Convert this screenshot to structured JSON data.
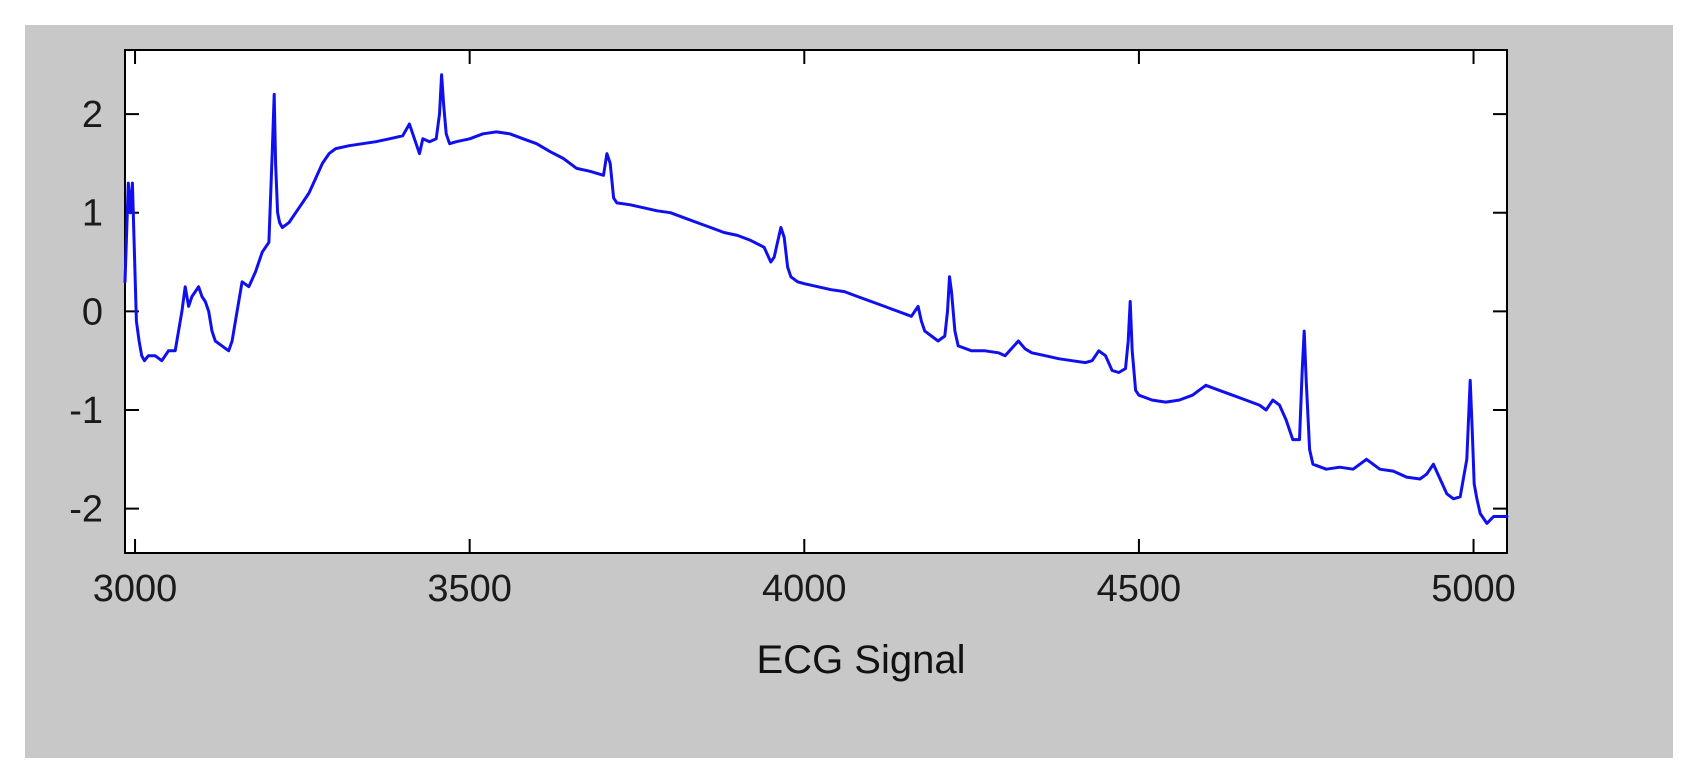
{
  "chart_data": {
    "type": "line",
    "title": "",
    "xlabel": "ECG Signal",
    "ylabel": "",
    "xlim": [
      2985,
      5050
    ],
    "ylim": [
      -2.45,
      2.65
    ],
    "xticks": [
      3000,
      3500,
      4000,
      4500,
      5000
    ],
    "yticks": [
      2,
      1,
      0,
      -1,
      -2
    ],
    "xtick_labels": [
      "3000",
      "3500",
      "4000",
      "4500",
      "5000"
    ],
    "ytick_labels": [
      "2",
      "1",
      "0",
      "-1",
      "-2"
    ],
    "grid": false,
    "legend": "none",
    "colors": {
      "line": "#1010ee",
      "panel_background": "#c8c8c8",
      "plot_background": "#ffffff",
      "axes": "#000000"
    },
    "series": [
      {
        "x": [
          2985,
          2990,
          2993,
          2996,
          2999,
          3002,
          3006,
          3010,
          3014,
          3020,
          3030,
          3040,
          3050,
          3060,
          3070,
          3075,
          3080,
          3085,
          3090,
          3095,
          3100,
          3105,
          3110,
          3115,
          3120,
          3130,
          3140,
          3145,
          3150,
          3160,
          3170,
          3180,
          3190,
          3200,
          3205,
          3208,
          3210,
          3213,
          3216,
          3220,
          3230,
          3240,
          3250,
          3260,
          3270,
          3280,
          3290,
          3300,
          3320,
          3340,
          3360,
          3380,
          3400,
          3410,
          3420,
          3425,
          3430,
          3440,
          3450,
          3455,
          3458,
          3461,
          3465,
          3470,
          3480,
          3500,
          3520,
          3540,
          3560,
          3580,
          3600,
          3620,
          3640,
          3660,
          3680,
          3700,
          3705,
          3710,
          3715,
          3720,
          3740,
          3760,
          3780,
          3800,
          3820,
          3840,
          3860,
          3880,
          3900,
          3920,
          3940,
          3950,
          3955,
          3960,
          3965,
          3970,
          3975,
          3980,
          3990,
          4000,
          4020,
          4040,
          4060,
          4080,
          4100,
          4120,
          4140,
          4160,
          4170,
          4175,
          4180,
          4190,
          4200,
          4210,
          4214,
          4217,
          4220,
          4225,
          4230,
          4250,
          4270,
          4290,
          4300,
          4320,
          4330,
          4340,
          4360,
          4380,
          4400,
          4420,
          4430,
          4440,
          4450,
          4460,
          4470,
          4480,
          4484,
          4487,
          4490,
          4495,
          4500,
          4520,
          4540,
          4560,
          4580,
          4600,
          4620,
          4640,
          4660,
          4680,
          4690,
          4700,
          4710,
          4720,
          4730,
          4740,
          4744,
          4747,
          4750,
          4755,
          4760,
          4780,
          4800,
          4820,
          4840,
          4860,
          4880,
          4900,
          4920,
          4930,
          4940,
          4950,
          4960,
          4970,
          4980,
          4990,
          4995,
          4998,
          5001,
          5005,
          5010,
          5020,
          5030,
          5050
        ],
        "y": [
          0.3,
          1.3,
          1.0,
          1.3,
          0.6,
          -0.1,
          -0.3,
          -0.45,
          -0.5,
          -0.45,
          -0.45,
          -0.5,
          -0.4,
          -0.4,
          0.0,
          0.25,
          0.05,
          0.15,
          0.2,
          0.25,
          0.15,
          0.1,
          0.0,
          -0.2,
          -0.3,
          -0.35,
          -0.4,
          -0.3,
          -0.1,
          0.3,
          0.25,
          0.4,
          0.6,
          0.7,
          1.6,
          2.2,
          1.5,
          1.0,
          0.9,
          0.85,
          0.9,
          1.0,
          1.1,
          1.2,
          1.35,
          1.5,
          1.6,
          1.65,
          1.68,
          1.7,
          1.72,
          1.75,
          1.78,
          1.9,
          1.7,
          1.6,
          1.75,
          1.72,
          1.75,
          2.0,
          2.4,
          2.1,
          1.8,
          1.7,
          1.72,
          1.75,
          1.8,
          1.82,
          1.8,
          1.75,
          1.7,
          1.62,
          1.55,
          1.45,
          1.42,
          1.38,
          1.6,
          1.5,
          1.15,
          1.1,
          1.08,
          1.05,
          1.02,
          1.0,
          0.95,
          0.9,
          0.85,
          0.8,
          0.77,
          0.72,
          0.65,
          0.5,
          0.55,
          0.7,
          0.85,
          0.75,
          0.45,
          0.35,
          0.3,
          0.28,
          0.25,
          0.22,
          0.2,
          0.15,
          0.1,
          0.05,
          0.0,
          -0.05,
          0.05,
          -0.1,
          -0.2,
          -0.25,
          -0.3,
          -0.25,
          0.0,
          0.35,
          0.2,
          -0.2,
          -0.35,
          -0.4,
          -0.4,
          -0.42,
          -0.45,
          -0.3,
          -0.38,
          -0.42,
          -0.45,
          -0.48,
          -0.5,
          -0.52,
          -0.5,
          -0.4,
          -0.45,
          -0.6,
          -0.62,
          -0.58,
          -0.3,
          0.1,
          -0.4,
          -0.8,
          -0.85,
          -0.9,
          -0.92,
          -0.9,
          -0.85,
          -0.75,
          -0.8,
          -0.85,
          -0.9,
          -0.95,
          -1.0,
          -0.9,
          -0.95,
          -1.1,
          -1.3,
          -1.3,
          -0.6,
          -0.2,
          -0.7,
          -1.4,
          -1.55,
          -1.6,
          -1.58,
          -1.6,
          -1.5,
          -1.6,
          -1.62,
          -1.68,
          -1.7,
          -1.65,
          -1.55,
          -1.7,
          -1.85,
          -1.9,
          -1.88,
          -1.5,
          -0.7,
          -1.2,
          -1.75,
          -1.9,
          -2.05,
          -2.15,
          -2.08,
          -2.08
        ]
      }
    ]
  }
}
